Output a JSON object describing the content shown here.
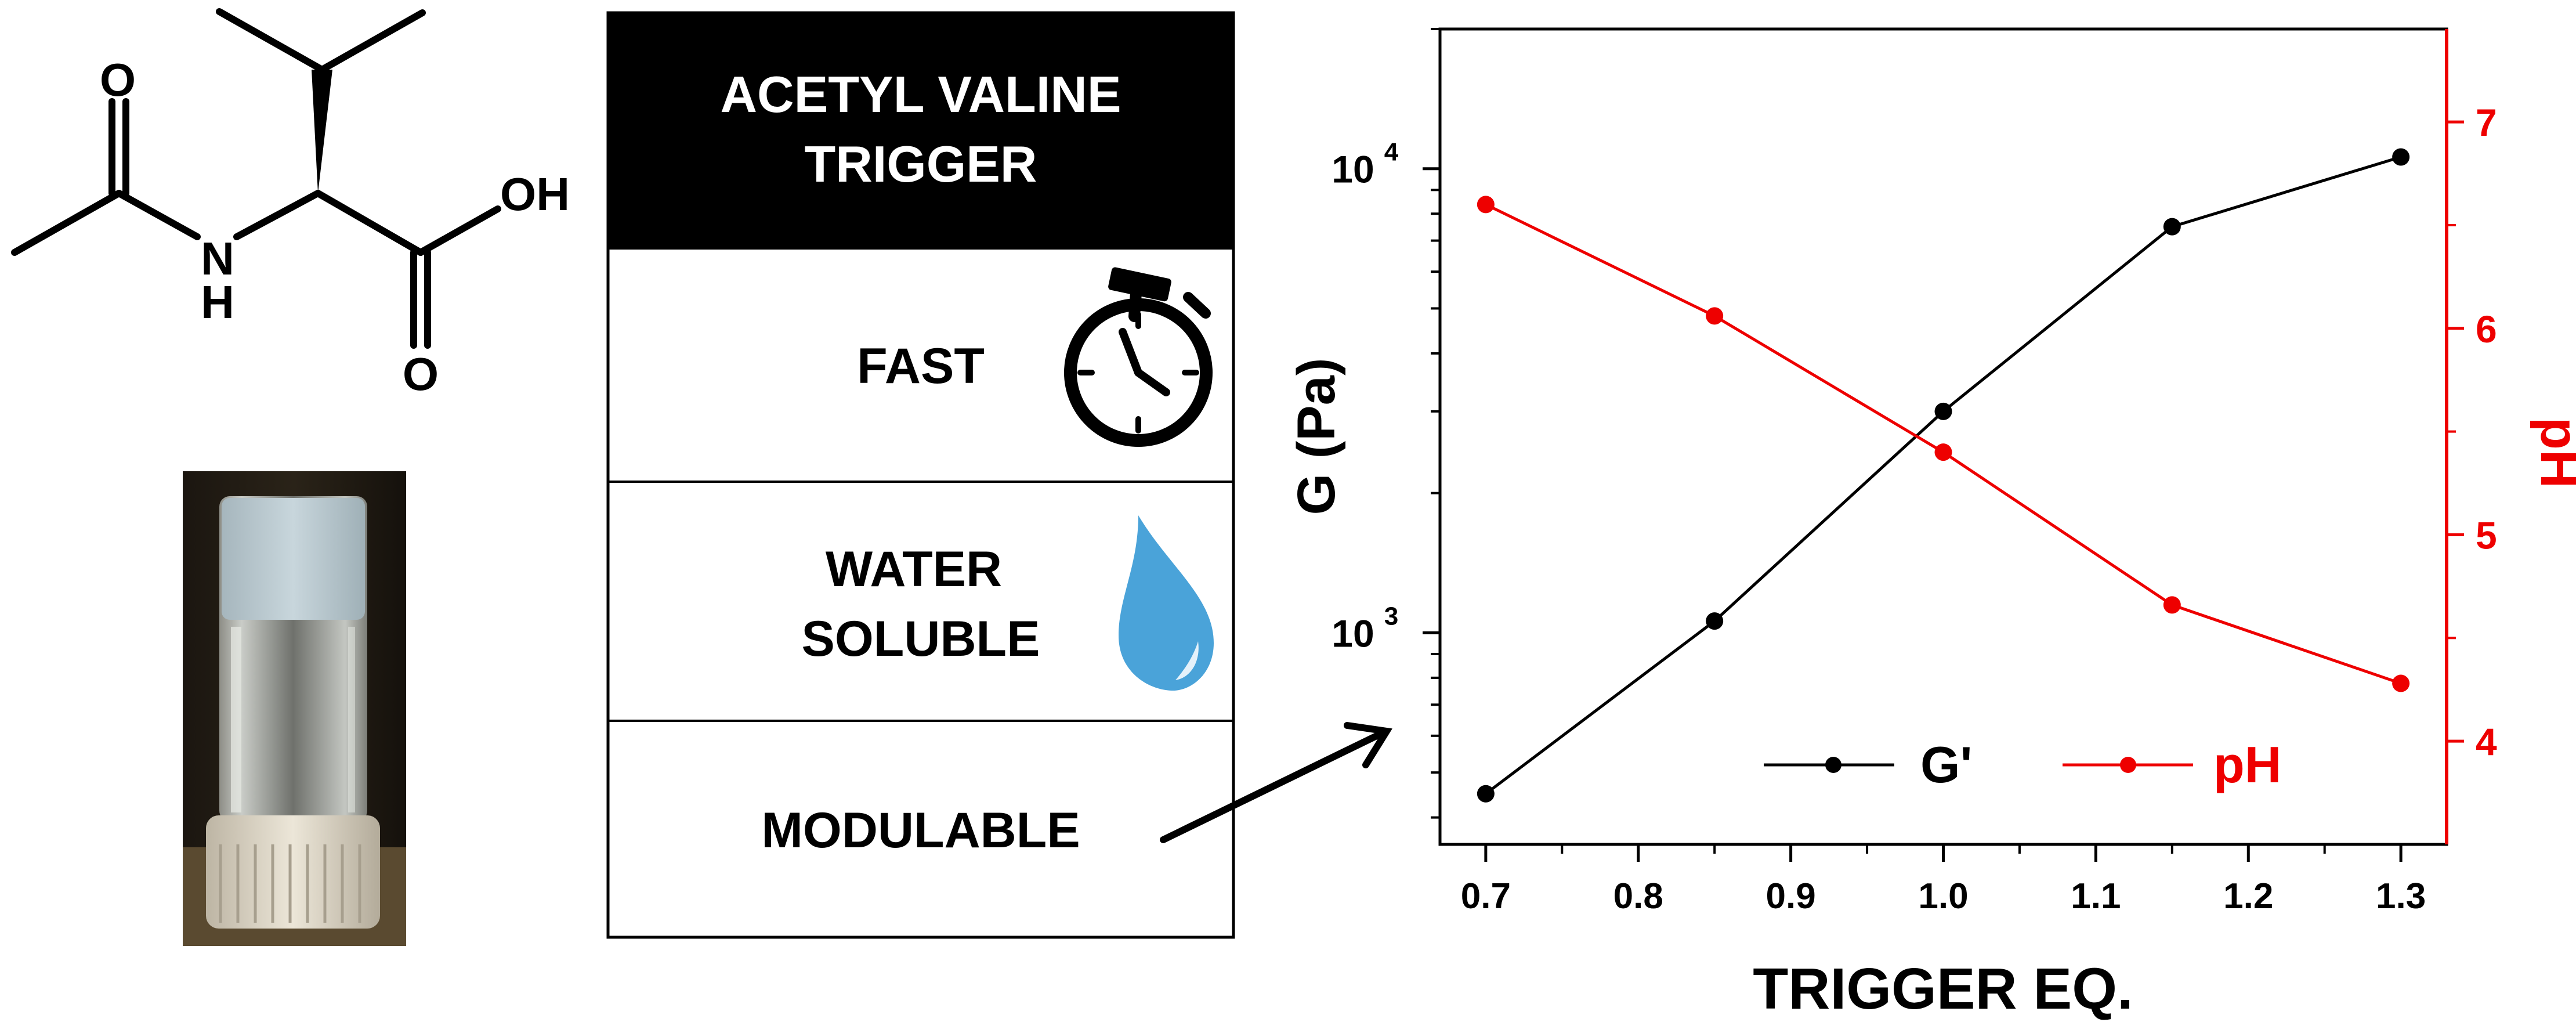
{
  "molecule": {
    "atoms": {
      "o1": "O",
      "oh": "OH",
      "n": "N",
      "h": "H",
      "o2": "O"
    }
  },
  "panel": {
    "header_line1": "ACETYL VALINE",
    "header_line2": "TRIGGER",
    "rows": [
      {
        "lines": [
          "FAST"
        ],
        "icon": "stopwatch-icon"
      },
      {
        "lines": [
          "WATER",
          "SOLUBLE"
        ],
        "icon": "water-drop-icon"
      },
      {
        "lines": [
          "MODULABLE"
        ],
        "icon": "arrow-icon"
      }
    ]
  },
  "colors": {
    "gprime": "#000000",
    "ph": "#ee0000",
    "drop": "#4aa3d9",
    "header_bg": "#000000",
    "header_text": "#ffffff"
  },
  "chart_data": {
    "type": "line",
    "xlabel": "TRIGGER EQ.",
    "ylabel_left": "G (Pa)",
    "ylabel_right": "pH",
    "x": [
      0.7,
      0.85,
      1.0,
      1.15,
      1.3
    ],
    "x_ticks": [
      "0.7",
      "0.8",
      "0.9",
      "1.0",
      "1.1",
      "1.2",
      "1.3"
    ],
    "xlim": [
      0.67,
      1.33
    ],
    "y_left_scale": "log",
    "y_left_lim": [
      350,
      20000
    ],
    "y_left_ticks": [
      {
        "value": 1000,
        "base": "10",
        "exp": "3"
      },
      {
        "value": 10000,
        "base": "10",
        "exp": "4"
      }
    ],
    "y_right_lim": [
      3.5,
      7.45
    ],
    "y_right_ticks": [
      "4",
      "5",
      "6",
      "7"
    ],
    "series": [
      {
        "name": "G'",
        "axis": "left",
        "values": [
          450,
          1060,
          3000,
          7500,
          10600
        ]
      },
      {
        "name": "pH",
        "axis": "right",
        "values": [
          6.6,
          6.06,
          5.4,
          4.66,
          4.28
        ]
      }
    ],
    "legend_position": "bottom-right",
    "grid": false
  }
}
